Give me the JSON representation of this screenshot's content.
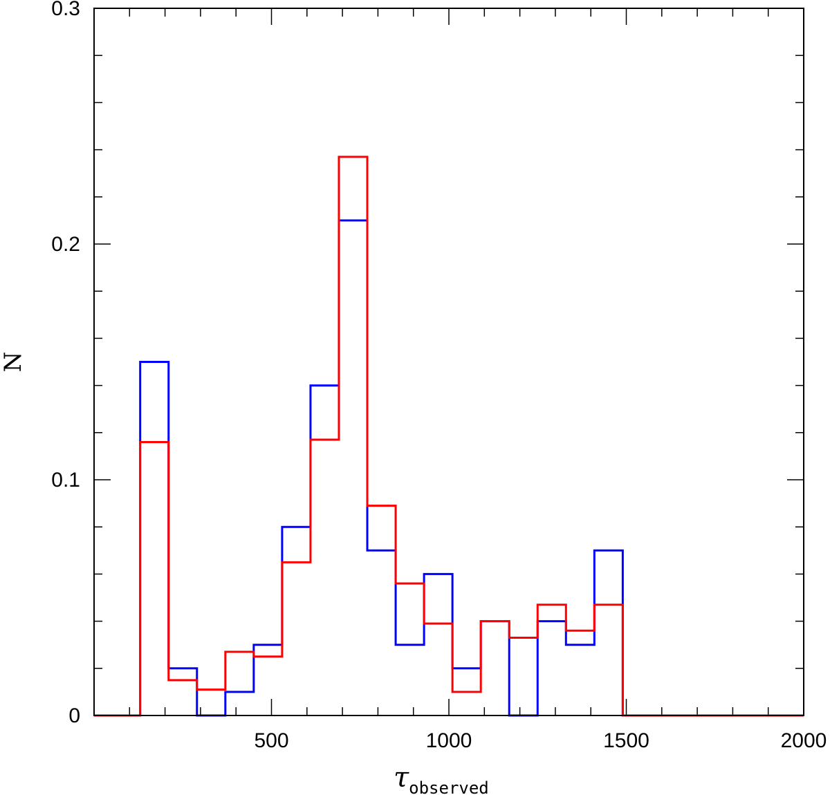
{
  "chart_data": {
    "type": "step-histogram",
    "xlabel": {
      "symbol": "τ",
      "subscript": "observed"
    },
    "ylabel": "N",
    "xlim": [
      0,
      2000
    ],
    "ylim": [
      0,
      0.3
    ],
    "x_ticks": [
      500,
      1000,
      1500,
      2000
    ],
    "y_ticks": [
      0,
      0.1,
      0.2,
      0.3
    ],
    "x_minor_step": 100,
    "y_minor_step": 0.02,
    "bin_edges": [
      0,
      130,
      210,
      290,
      370,
      450,
      530,
      610,
      690,
      770,
      850,
      930,
      1010,
      1090,
      1170,
      1250,
      1330,
      1410,
      1490,
      1570,
      2000
    ],
    "series": [
      {
        "color": "#0000ff",
        "values": [
          0,
          0.15,
          0.02,
          0,
          0.01,
          0.03,
          0.08,
          0.14,
          0.21,
          0.07,
          0.03,
          0.06,
          0.02,
          0.04,
          0,
          0.04,
          0.03,
          0.07,
          0,
          0
        ]
      },
      {
        "color": "#ff0000",
        "values": [
          0,
          0.116,
          0.015,
          0.011,
          0.027,
          0.025,
          0.065,
          0.117,
          0.237,
          0.089,
          0.056,
          0.039,
          0.01,
          0.04,
          0.033,
          0.047,
          0.036,
          0.047,
          0,
          0
        ]
      }
    ]
  }
}
